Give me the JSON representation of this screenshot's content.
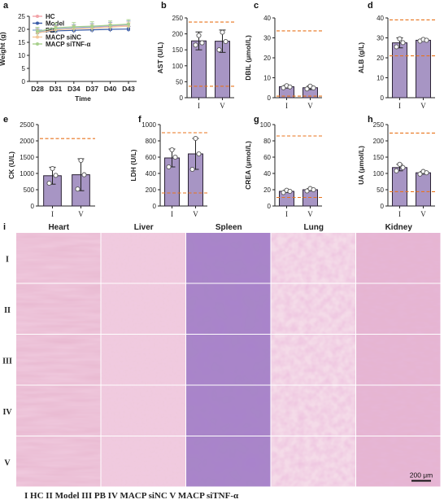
{
  "colors": {
    "bar_fill": "#a795c4",
    "bar_stroke": "#2b2235",
    "ref_line": "#e8731c",
    "hc": "#f2a3a8",
    "model": "#3a5da8",
    "pb": "#8fb0d8",
    "siNC": "#f4c79a",
    "siTNF": "#a8d08d"
  },
  "panel_labels": [
    "a",
    "b",
    "c",
    "d",
    "e",
    "f",
    "g",
    "h",
    "i"
  ],
  "chart_data": [
    {
      "id": "a",
      "type": "line",
      "title": "",
      "xlabel": "Time",
      "ylabel": "Weight (g)",
      "categories": [
        "D28",
        "D31",
        "D34",
        "D37",
        "D40",
        "D43"
      ],
      "ylim": [
        0,
        25
      ],
      "yticks": [
        0,
        5,
        10,
        15,
        20,
        25
      ],
      "legend_position": "top-left",
      "series": [
        {
          "name": "HC",
          "color_key": "hc",
          "marker": "circle",
          "values": [
            18.8,
            20.0,
            20.5,
            20.8,
            21.2,
            21.6
          ],
          "err": [
            1.5,
            1.4,
            1.3,
            1.3,
            1.4,
            1.5
          ]
        },
        {
          "name": "Model",
          "color_key": "model",
          "marker": "square",
          "values": [
            18.8,
            19.4,
            19.6,
            19.8,
            20.0,
            20.1
          ],
          "err": [
            1.0,
            1.0,
            1.0,
            1.0,
            1.0,
            1.0
          ]
        },
        {
          "name": "PB",
          "color_key": "pb",
          "marker": "triangle",
          "values": [
            19.0,
            20.2,
            20.6,
            20.9,
            21.4,
            21.8
          ],
          "err": [
            1.2,
            1.3,
            1.2,
            1.3,
            1.3,
            1.4
          ]
        },
        {
          "name": "MACP siNC",
          "color_key": "siNC",
          "marker": "diamond",
          "values": [
            18.6,
            19.8,
            20.2,
            20.4,
            20.8,
            21.2
          ],
          "err": [
            1.3,
            1.3,
            1.2,
            1.2,
            1.3,
            1.3
          ]
        },
        {
          "name": "MACP siTNF-α",
          "color_key": "siTNF",
          "marker": "circle",
          "values": [
            19.2,
            20.6,
            21.0,
            21.2,
            21.6,
            22.0
          ],
          "err": [
            1.6,
            1.8,
            1.6,
            1.7,
            1.6,
            1.7
          ]
        }
      ]
    },
    {
      "id": "b",
      "type": "bar",
      "ylabel": "AST (U/L)",
      "categories": [
        "I",
        "V"
      ],
      "values": [
        178,
        177
      ],
      "err": [
        28,
        35
      ],
      "ylim": [
        0,
        250
      ],
      "yticks": [
        0,
        50,
        100,
        150,
        200,
        250
      ],
      "points": [
        [
          165,
          195,
          172
        ],
        [
          150,
          205,
          176
        ]
      ],
      "ref_lines": [
        36,
        237
      ]
    },
    {
      "id": "c",
      "type": "bar",
      "ylabel": "DBIL (μmol/L)",
      "categories": [
        "I",
        "V"
      ],
      "values": [
        5.5,
        5.0
      ],
      "err": [
        0.7,
        0.9
      ],
      "ylim": [
        0,
        40
      ],
      "yticks": [
        0,
        10,
        20,
        30,
        40
      ],
      "points": [
        [
          5.0,
          6.0,
          5.4
        ],
        [
          4.4,
          5.8,
          4.9
        ]
      ],
      "ref_lines": [
        0.8,
        33.5
      ]
    },
    {
      "id": "d",
      "type": "bar",
      "ylabel": "ALB (g/L)",
      "categories": [
        "I",
        "V"
      ],
      "values": [
        27.5,
        28.8
      ],
      "err": [
        2.5,
        0.5
      ],
      "ylim": [
        0,
        40
      ],
      "yticks": [
        0,
        10,
        20,
        30,
        40
      ],
      "points": [
        [
          25.5,
          29.5,
          27.6
        ],
        [
          28.4,
          29.2,
          28.8
        ]
      ],
      "ref_lines": [
        21,
        39
      ]
    },
    {
      "id": "e",
      "type": "bar",
      "ylabel": "CK (U/L)",
      "categories": [
        "I",
        "V"
      ],
      "values": [
        930,
        960
      ],
      "err": [
        260,
        490
      ],
      "ylim": [
        0,
        2500
      ],
      "yticks": [
        0,
        500,
        1000,
        1500,
        2000,
        2500
      ],
      "points": [
        [
          700,
          1150,
          940
        ],
        [
          520,
          1400,
          960
        ]
      ],
      "ref_lines": [
        2070
      ]
    },
    {
      "id": "f",
      "type": "bar",
      "ylabel": "LDH (U/L)",
      "categories": [
        "I",
        "V"
      ],
      "values": [
        590,
        640
      ],
      "err": [
        110,
        190
      ],
      "ylim": [
        0,
        1000
      ],
      "yticks": [
        0,
        200,
        400,
        600,
        800,
        1000
      ],
      "points": [
        [
          480,
          690,
          600
        ],
        [
          450,
          830,
          640
        ]
      ],
      "ref_lines": [
        160,
        900
      ]
    },
    {
      "id": "g",
      "type": "bar",
      "ylabel": "CREA (μmol/L)",
      "categories": [
        "I",
        "V"
      ],
      "values": [
        18,
        20
      ],
      "err": [
        1.5,
        1.5
      ],
      "ylim": [
        0,
        100
      ],
      "yticks": [
        0,
        20,
        40,
        60,
        80,
        100
      ],
      "points": [
        [
          16.5,
          19.3,
          18
        ],
        [
          18.5,
          21.4,
          20
        ]
      ],
      "ref_lines": [
        10.5,
        86
      ]
    },
    {
      "id": "h",
      "type": "bar",
      "ylabel": "UA (μmol/L)",
      "categories": [
        "I",
        "V"
      ],
      "values": [
        118,
        102
      ],
      "err": [
        10,
        4
      ],
      "ylim": [
        0,
        250
      ],
      "yticks": [
        0,
        50,
        100,
        150,
        200,
        250
      ],
      "points": [
        [
          108,
          128,
          118
        ],
        [
          98,
          106,
          102
        ]
      ],
      "ref_lines": [
        44,
        224
      ]
    }
  ],
  "histology": {
    "columns": [
      "Heart",
      "Liver",
      "Spleen",
      "Lung",
      "Kidney"
    ],
    "rows": [
      "I",
      "II",
      "III",
      "IV",
      "V"
    ],
    "scale_bar": "200 μm",
    "tile_colors": [
      "#e8b8d0",
      "#efc9dc",
      "#a887c6",
      "#f4dbe8",
      "#e6b4cf"
    ],
    "legend": "I HC  II Model  III PB  IV MACP siNC  V MACP siTNF-α"
  }
}
